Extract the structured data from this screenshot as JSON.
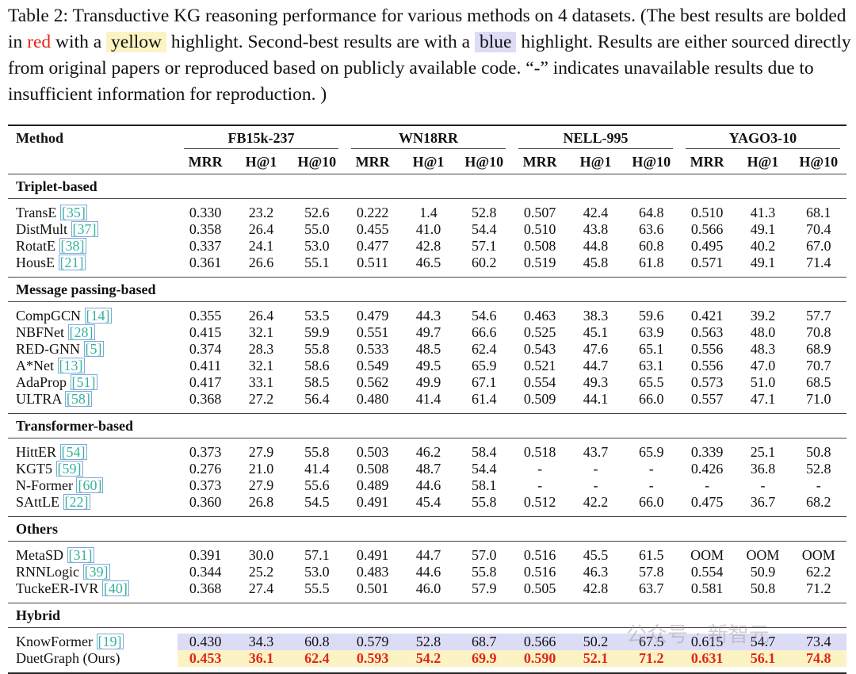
{
  "caption": [
    "Table 2: Transductive KG reasoning performance for various methods on 4 datasets. (The best results are bolded in ",
    "red",
    " with a ",
    "yellow",
    " highlight. Second-best results are with a ",
    "blue",
    " highlight. Results are either sourced directly from original papers or reproduced based on publicly available code. “-” indicates unavailable results due to insufficient information for reproduction. )"
  ],
  "table": {
    "method_header": "Method",
    "datasets": [
      {
        "name": "FB15k-237",
        "metrics": [
          "MRR",
          "H@1",
          "H@10"
        ]
      },
      {
        "name": "WN18RR",
        "metrics": [
          "MRR",
          "H@1",
          "H@10"
        ]
      },
      {
        "name": "NELL-995",
        "metrics": [
          "MRR",
          "H@1",
          "H@10"
        ]
      },
      {
        "name": "YAGO3-10",
        "metrics": [
          "MRR",
          "H@1",
          "H@10"
        ]
      }
    ],
    "groups": [
      {
        "name": "Triplet-based",
        "rows": [
          {
            "method": "TransE",
            "ref": "[35]",
            "cells": [
              "0.330",
              "23.2",
              "52.6",
              "0.222",
              "1.4",
              "52.8",
              "0.507",
              "42.4",
              "64.8",
              "0.510",
              "41.3",
              "68.1"
            ]
          },
          {
            "method": "DistMult",
            "ref": "[37]",
            "cells": [
              "0.358",
              "26.4",
              "55.0",
              "0.455",
              "41.0",
              "54.4",
              "0.510",
              "43.8",
              "63.6",
              "0.566",
              "49.1",
              "70.4"
            ]
          },
          {
            "method": "RotatE",
            "ref": "[38]",
            "cells": [
              "0.337",
              "24.1",
              "53.0",
              "0.477",
              "42.8",
              "57.1",
              "0.508",
              "44.8",
              "60.8",
              "0.495",
              "40.2",
              "67.0"
            ]
          },
          {
            "method": "HousE",
            "ref": "[21]",
            "cells": [
              "0.361",
              "26.6",
              "55.1",
              "0.511",
              "46.5",
              "60.2",
              "0.519",
              "45.8",
              "61.8",
              "0.571",
              "49.1",
              "71.4"
            ]
          }
        ]
      },
      {
        "name": "Message passing-based",
        "rows": [
          {
            "method": "CompGCN",
            "ref": "[14]",
            "cells": [
              "0.355",
              "26.4",
              "53.5",
              "0.479",
              "44.3",
              "54.6",
              "0.463",
              "38.3",
              "59.6",
              "0.421",
              "39.2",
              "57.7"
            ]
          },
          {
            "method": "NBFNet",
            "ref": "[28]",
            "cells": [
              "0.415",
              "32.1",
              "59.9",
              "0.551",
              "49.7",
              "66.6",
              "0.525",
              "45.1",
              "63.9",
              "0.563",
              "48.0",
              "70.8"
            ]
          },
          {
            "method": "RED-GNN",
            "ref": "[5]",
            "cells": [
              "0.374",
              "28.3",
              "55.8",
              "0.533",
              "48.5",
              "62.4",
              "0.543",
              "47.6",
              "65.1",
              "0.556",
              "48.3",
              "68.9"
            ]
          },
          {
            "method": "A*Net",
            "ref": "[13]",
            "cells": [
              "0.411",
              "32.1",
              "58.6",
              "0.549",
              "49.5",
              "65.9",
              "0.521",
              "44.7",
              "63.1",
              "0.556",
              "47.0",
              "70.7"
            ]
          },
          {
            "method": "AdaProp",
            "ref": "[51]",
            "cells": [
              "0.417",
              "33.1",
              "58.5",
              "0.562",
              "49.9",
              "67.1",
              "0.554",
              "49.3",
              "65.5",
              "0.573",
              "51.0",
              "68.5"
            ]
          },
          {
            "method": "ULTRA",
            "ref": "[58]",
            "cells": [
              "0.368",
              "27.2",
              "56.4",
              "0.480",
              "41.4",
              "61.4",
              "0.509",
              "44.1",
              "66.0",
              "0.557",
              "47.1",
              "71.0"
            ]
          }
        ]
      },
      {
        "name": "Transformer-based",
        "rows": [
          {
            "method": "HittER",
            "ref": "[54]",
            "cells": [
              "0.373",
              "27.9",
              "55.8",
              "0.503",
              "46.2",
              "58.4",
              "0.518",
              "43.7",
              "65.9",
              "0.339",
              "25.1",
              "50.8"
            ]
          },
          {
            "method": "KGT5",
            "ref": "[59]",
            "cells": [
              "0.276",
              "21.0",
              "41.4",
              "0.508",
              "48.7",
              "54.4",
              "-",
              "-",
              "-",
              "0.426",
              "36.8",
              "52.8"
            ]
          },
          {
            "method": "N-Former",
            "ref": "[60]",
            "cells": [
              "0.373",
              "27.9",
              "55.6",
              "0.489",
              "44.6",
              "58.1",
              "-",
              "-",
              "-",
              "-",
              "-",
              "-"
            ]
          },
          {
            "method": "SAttLE",
            "ref": "[22]",
            "cells": [
              "0.360",
              "26.8",
              "54.5",
              "0.491",
              "45.4",
              "55.8",
              "0.512",
              "42.2",
              "66.0",
              "0.475",
              "36.7",
              "68.2"
            ]
          }
        ]
      },
      {
        "name": "Others",
        "rows": [
          {
            "method": "MetaSD",
            "ref": "[31]",
            "cells": [
              "0.391",
              "30.0",
              "57.1",
              "0.491",
              "44.7",
              "57.0",
              "0.516",
              "45.5",
              "61.5",
              "OOM",
              "OOM",
              "OOM"
            ]
          },
          {
            "method": "RNNLogic",
            "ref": "[39]",
            "cells": [
              "0.344",
              "25.2",
              "53.0",
              "0.483",
              "44.6",
              "55.8",
              "0.516",
              "46.3",
              "57.8",
              "0.554",
              "50.9",
              "62.2"
            ]
          },
          {
            "method": "TuckeER-IVR",
            "ref": "[40]",
            "cells": [
              "0.368",
              "27.4",
              "55.5",
              "0.501",
              "46.0",
              "57.9",
              "0.505",
              "42.8",
              "63.7",
              "0.581",
              "50.8",
              "71.2"
            ]
          }
        ]
      },
      {
        "name": "Hybrid",
        "rows": [
          {
            "method": "KnowFormer",
            "ref": "[19]",
            "highlight": "second",
            "cells": [
              "0.430",
              "34.3",
              "60.8",
              "0.579",
              "52.8",
              "68.7",
              "0.566",
              "50.2",
              "67.5",
              "0.615",
              "54.7",
              "73.4"
            ]
          },
          {
            "method": "DuetGraph (Ours)",
            "highlight": "best",
            "cells": [
              "0.453",
              "36.1",
              "62.4",
              "0.593",
              "54.2",
              "69.9",
              "0.590",
              "52.1",
              "71.2",
              "0.631",
              "56.1",
              "74.8"
            ]
          }
        ]
      }
    ]
  },
  "watermark": "公众号 · 新智元"
}
